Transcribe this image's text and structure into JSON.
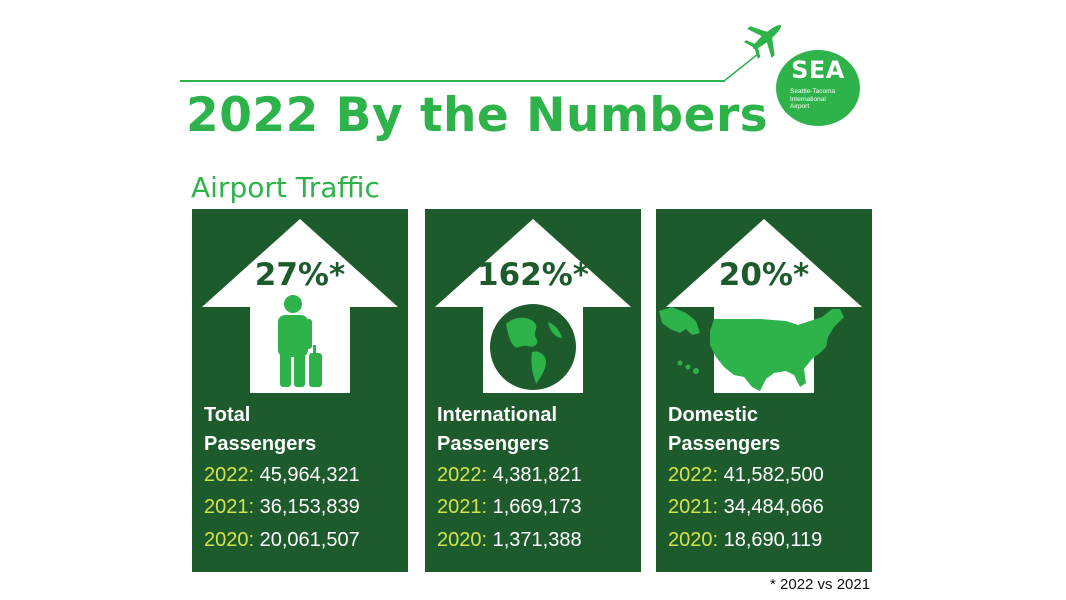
{
  "header": {
    "title": "2022 By the Numbers",
    "section": "Airport Traffic"
  },
  "logo": {
    "text": "SEA",
    "subtext": [
      "Seattle-Tacoma",
      "International",
      "Airport"
    ]
  },
  "cards": [
    {
      "percent": "27%*",
      "label_line1": "Total",
      "label_line2": "Passengers",
      "icon": "traveler-with-luggage-icon",
      "stats": [
        {
          "year": "2022:",
          "value": "45,964,321"
        },
        {
          "year": "2021:",
          "value": "36,153,839"
        },
        {
          "year": "2020:",
          "value": "20,061,507"
        }
      ]
    },
    {
      "percent": "162%*",
      "label_line1": "International",
      "label_line2": "Passengers",
      "icon": "globe-icon",
      "stats": [
        {
          "year": "2022:",
          "value": "4,381,821"
        },
        {
          "year": "2021:",
          "value": "1,669,173"
        },
        {
          "year": "2020:",
          "value": "1,371,388"
        }
      ]
    },
    {
      "percent": "20%*",
      "label_line1": "Domestic",
      "label_line2": "Passengers",
      "icon": "usa-map-icon",
      "stats": [
        {
          "year": "2022:",
          "value": "41,582,500"
        },
        {
          "year": "2021:",
          "value": "34,484,666"
        },
        {
          "year": "2020:",
          "value": "18,690,119"
        }
      ]
    }
  ],
  "footnote": "* 2022 vs 2021",
  "colors": {
    "brand_green": "#2db34a",
    "card_dark_green": "#1e5b2c",
    "year_yellow": "#d4e34a"
  }
}
